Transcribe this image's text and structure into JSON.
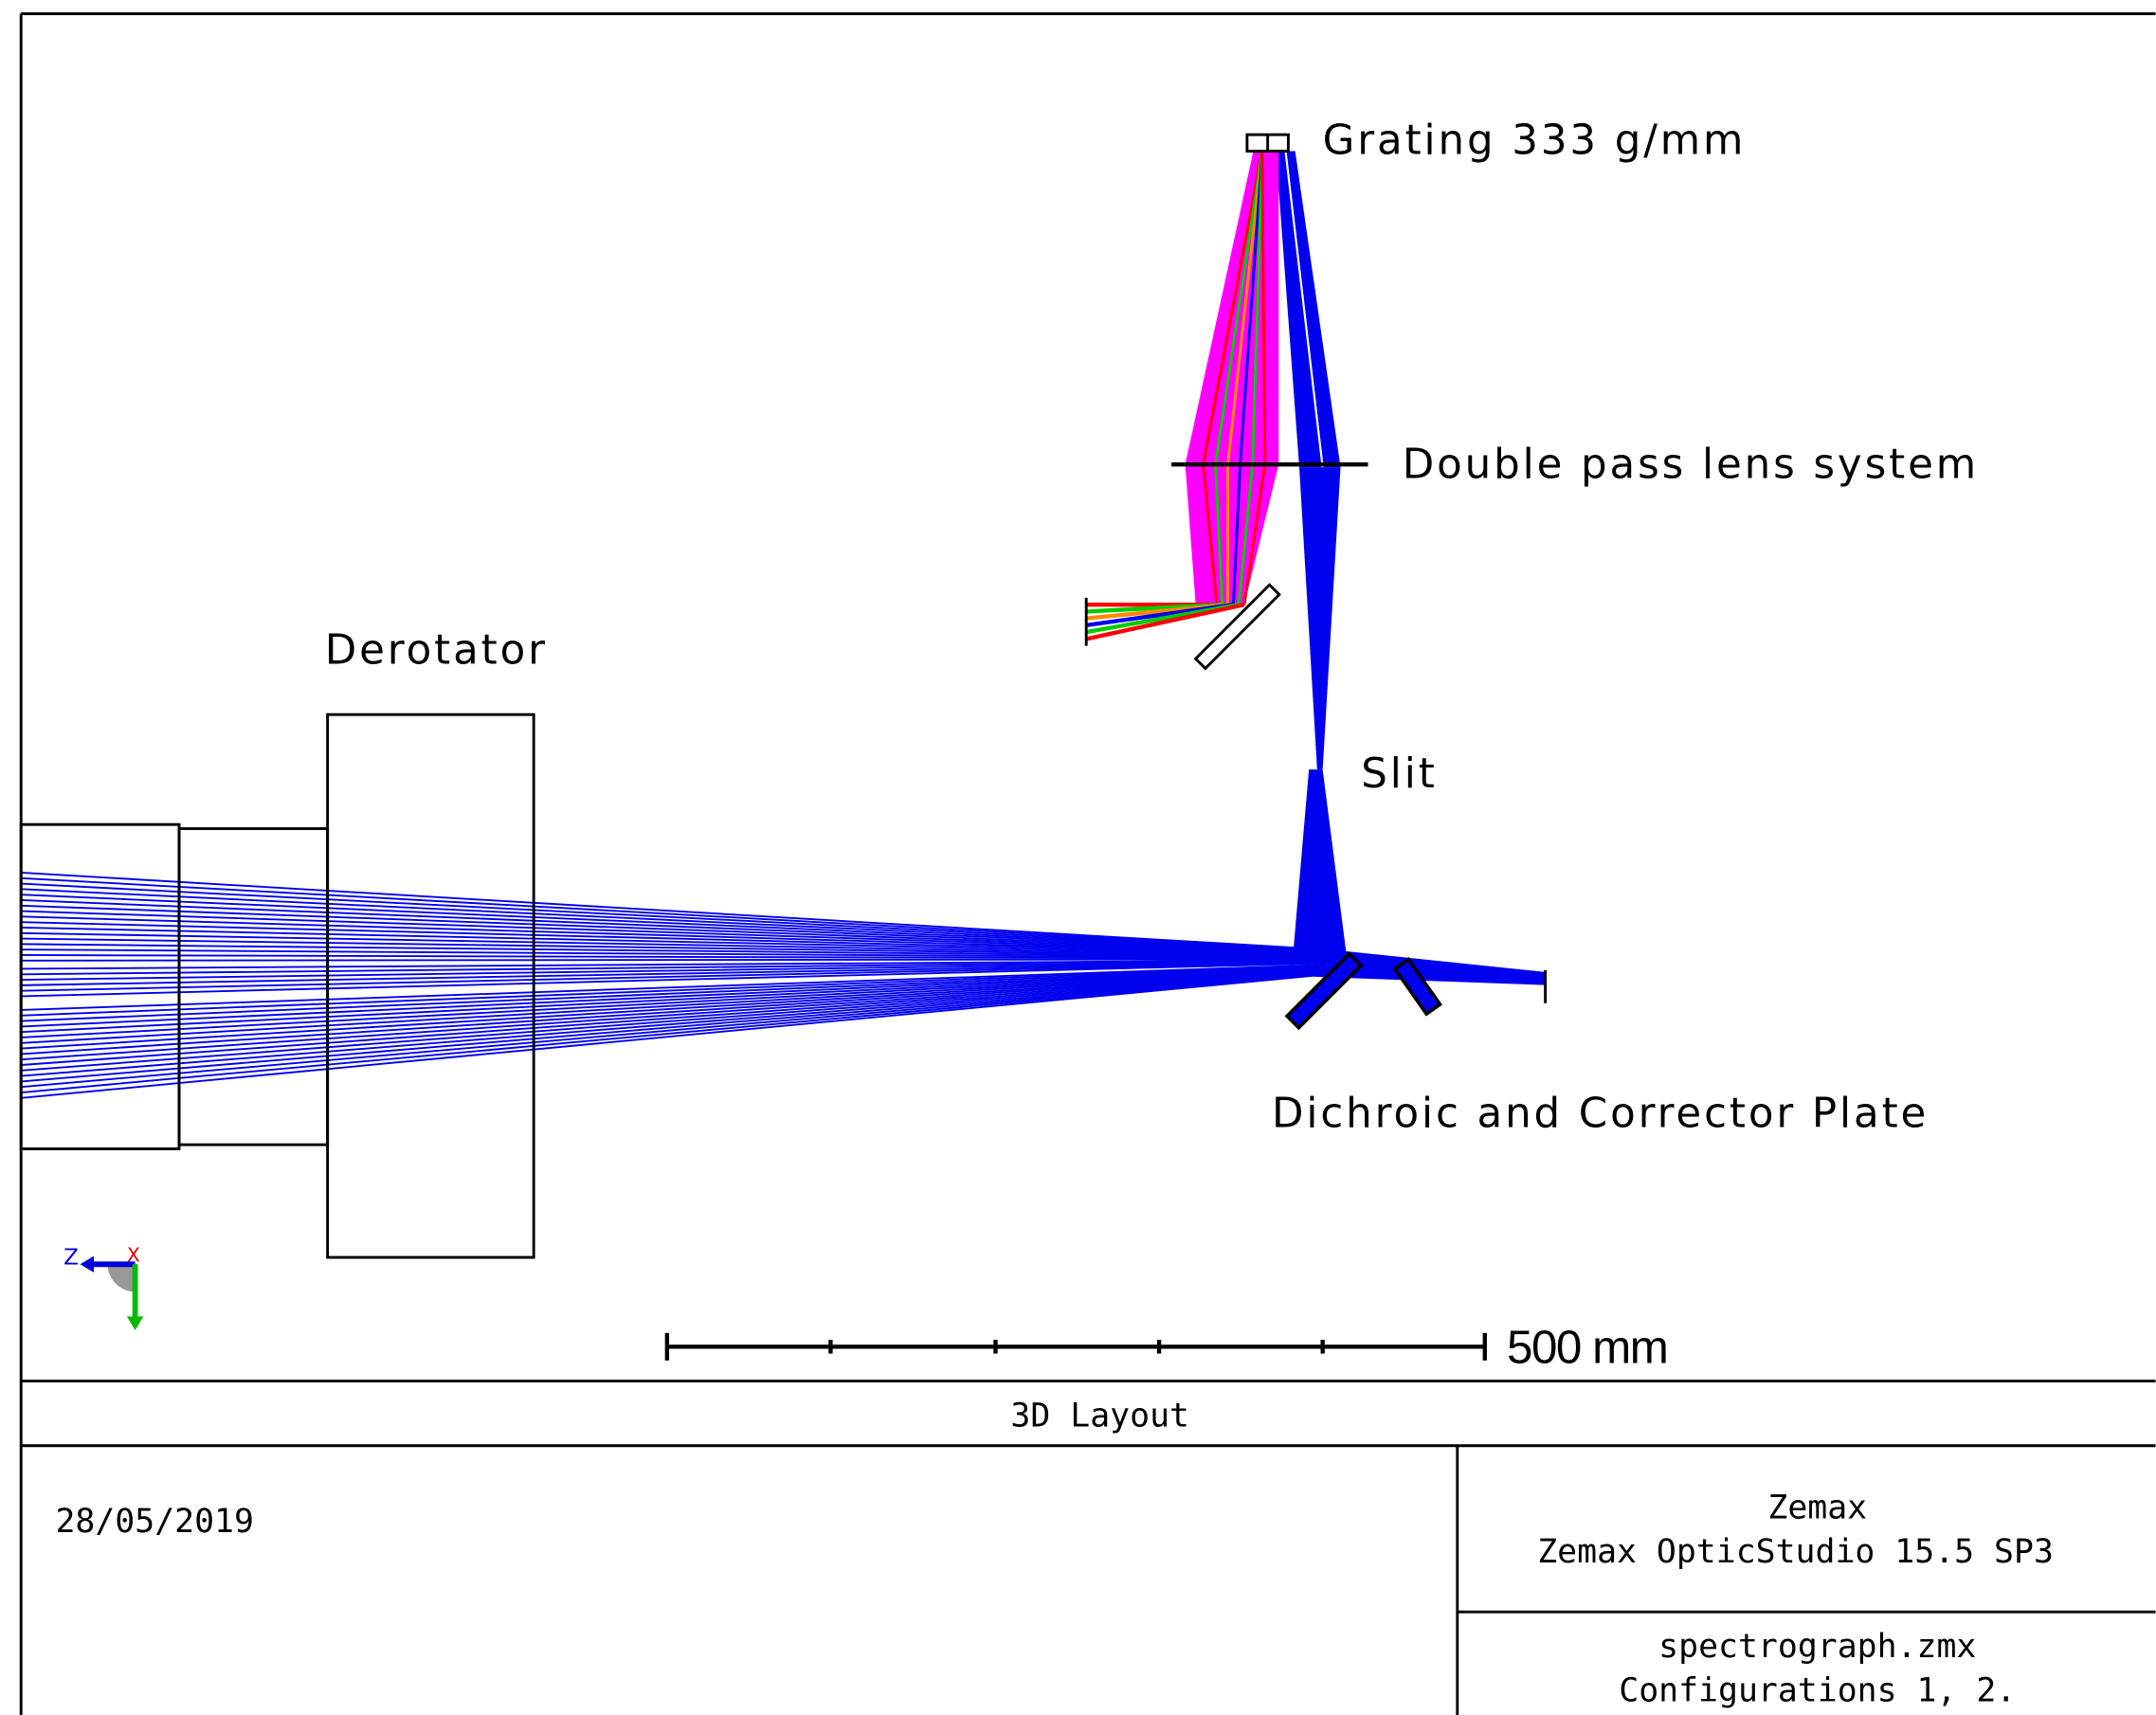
{
  "labels": {
    "grating": "Grating 333 g/mm",
    "lens": "Double pass lens system",
    "derotator": "Derotator",
    "slit": "Slit",
    "dichroic": "Dichroic and Corrector Plate",
    "scale": "500 mm",
    "axis_z": "Z",
    "axis_x": "X"
  },
  "footer": {
    "title": "3D Layout",
    "date": "28/05/2019",
    "company": "Zemax",
    "software": "Zemax OpticStudio 15.5 SP3",
    "file": "spectrograph.zmx",
    "configurations": "Configurations 1, 2."
  }
}
